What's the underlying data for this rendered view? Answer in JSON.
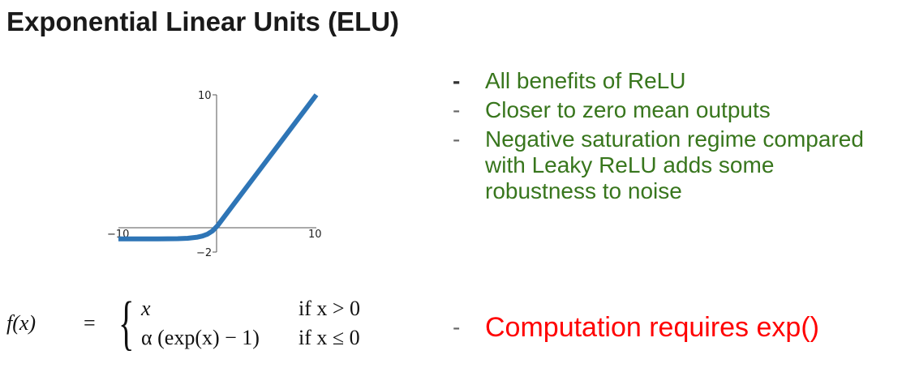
{
  "title": "Exponential Linear Units (ELU)",
  "chart_data": {
    "type": "line",
    "function": "ELU with alpha = 1",
    "x": [
      -10,
      -8,
      -6,
      -4,
      -3,
      -2,
      -1.5,
      -1,
      -0.5,
      0,
      2,
      4,
      6,
      8,
      10
    ],
    "series": [
      {
        "values": [
          -0.99995,
          -0.99966,
          -0.99752,
          -0.98168,
          -0.95021,
          -0.86466,
          -0.77687,
          -0.63212,
          -0.39347,
          0,
          2,
          4,
          6,
          8,
          10
        ]
      }
    ],
    "xlim": [
      -10,
      10
    ],
    "ylim": [
      -2,
      10
    ],
    "xticks": [
      "−10",
      "10"
    ],
    "yticks": [
      "10",
      "−2"
    ],
    "line_color": "#2e75b6",
    "grid": false
  },
  "pros": [
    "All benefits of ReLU",
    "Closer to zero mean outputs",
    "Negative saturation regime compared with Leaky ReLU adds some robustness to noise"
  ],
  "cons": [
    "Computation requires exp()"
  ],
  "formula": {
    "lhs": "f(x)",
    "eq": "=",
    "case1": "x",
    "cond1": "if x > 0",
    "case2": "α (exp(x) − 1)",
    "cond2": "if x ≤ 0"
  },
  "colors": {
    "pros": "#38761d",
    "cons": "#ff0000",
    "curve": "#2e75b6"
  }
}
